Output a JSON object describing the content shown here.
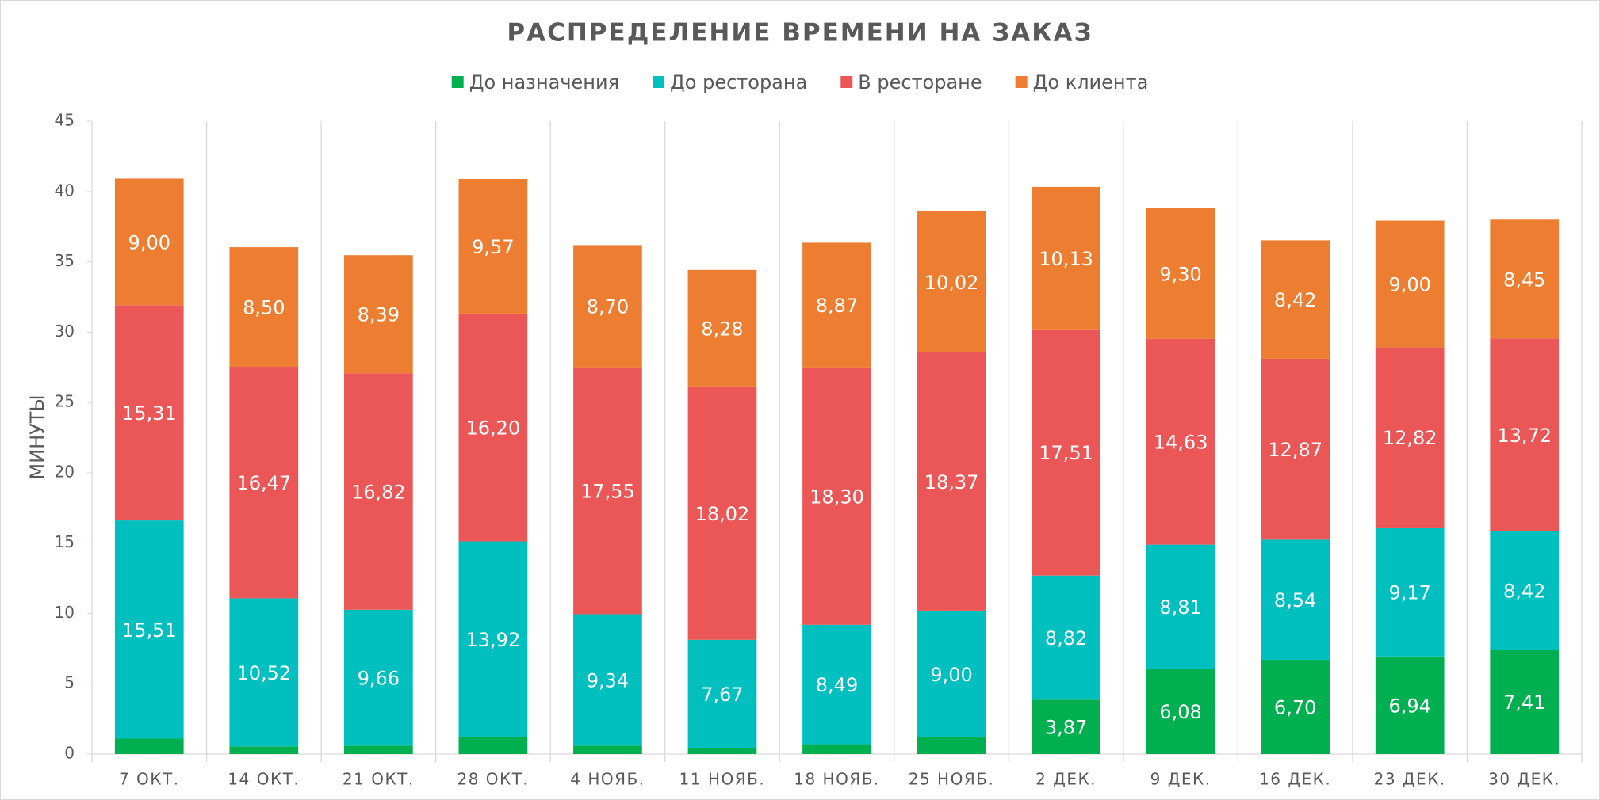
{
  "chart_data": {
    "type": "stacked_bar",
    "title": "РАСПРЕДЕЛЕНИЕ ВРЕМЕНИ НА ЗАКАЗ",
    "y_label": "МИНУТЫ",
    "categories": [
      "7 ОКТ.",
      "14 ОКТ.",
      "21 ОКТ.",
      "28 ОКТ.",
      "4 НОЯБ.",
      "11 НОЯБ.",
      "18 НОЯБ.",
      "25 НОЯБ.",
      "2 ДЕК.",
      "9 ДЕК.",
      "16 ДЕК.",
      "23 ДЕК.",
      "30 ДЕК."
    ],
    "series": [
      {
        "name": "До назначения",
        "color": "#00b050",
        "values": [
          1.1,
          0.55,
          0.6,
          1.2,
          0.6,
          0.45,
          0.7,
          1.2,
          3.87,
          6.08,
          6.7,
          6.94,
          7.41
        ],
        "value_labels": [
          null,
          null,
          null,
          null,
          null,
          null,
          null,
          null,
          "3,87",
          "6,08",
          "6,70",
          "6,94",
          "7,41"
        ]
      },
      {
        "name": "До ресторана",
        "color": "#00bfbf",
        "values": [
          15.51,
          10.52,
          9.66,
          13.92,
          9.34,
          7.67,
          8.49,
          9.0,
          8.82,
          8.81,
          8.54,
          9.17,
          8.42
        ],
        "value_labels": [
          "15,51",
          "10,52",
          "9,66",
          "13,92",
          "9,34",
          "7,67",
          "8,49",
          "9,00",
          "8,82",
          "8,81",
          "8,54",
          "9,17",
          "8,42"
        ]
      },
      {
        "name": "В ресторане",
        "color": "#eb5757",
        "values": [
          15.31,
          16.47,
          16.82,
          16.2,
          17.55,
          18.02,
          18.3,
          18.37,
          17.51,
          14.63,
          12.87,
          12.82,
          13.72
        ],
        "value_labels": [
          "15,31",
          "16,47",
          "16,82",
          "16,20",
          "17,55",
          "18,02",
          "18,30",
          "18,37",
          "17,51",
          "14,63",
          "12,87",
          "12,82",
          "13,72"
        ]
      },
      {
        "name": "До клиента",
        "color": "#ed7d31",
        "values": [
          9.0,
          8.5,
          8.39,
          9.57,
          8.7,
          8.28,
          8.87,
          10.02,
          10.13,
          9.3,
          8.42,
          9.0,
          8.45
        ],
        "value_labels": [
          "9,00",
          "8,50",
          "8,39",
          "9,57",
          "8,70",
          "8,28",
          "8,87",
          "10,02",
          "10,13",
          "9,30",
          "8,42",
          "9,00",
          "8,45"
        ]
      }
    ],
    "ylim": [
      0,
      45
    ],
    "yticks": [
      0,
      5,
      10,
      15,
      20,
      25,
      30,
      35,
      40,
      45
    ]
  }
}
